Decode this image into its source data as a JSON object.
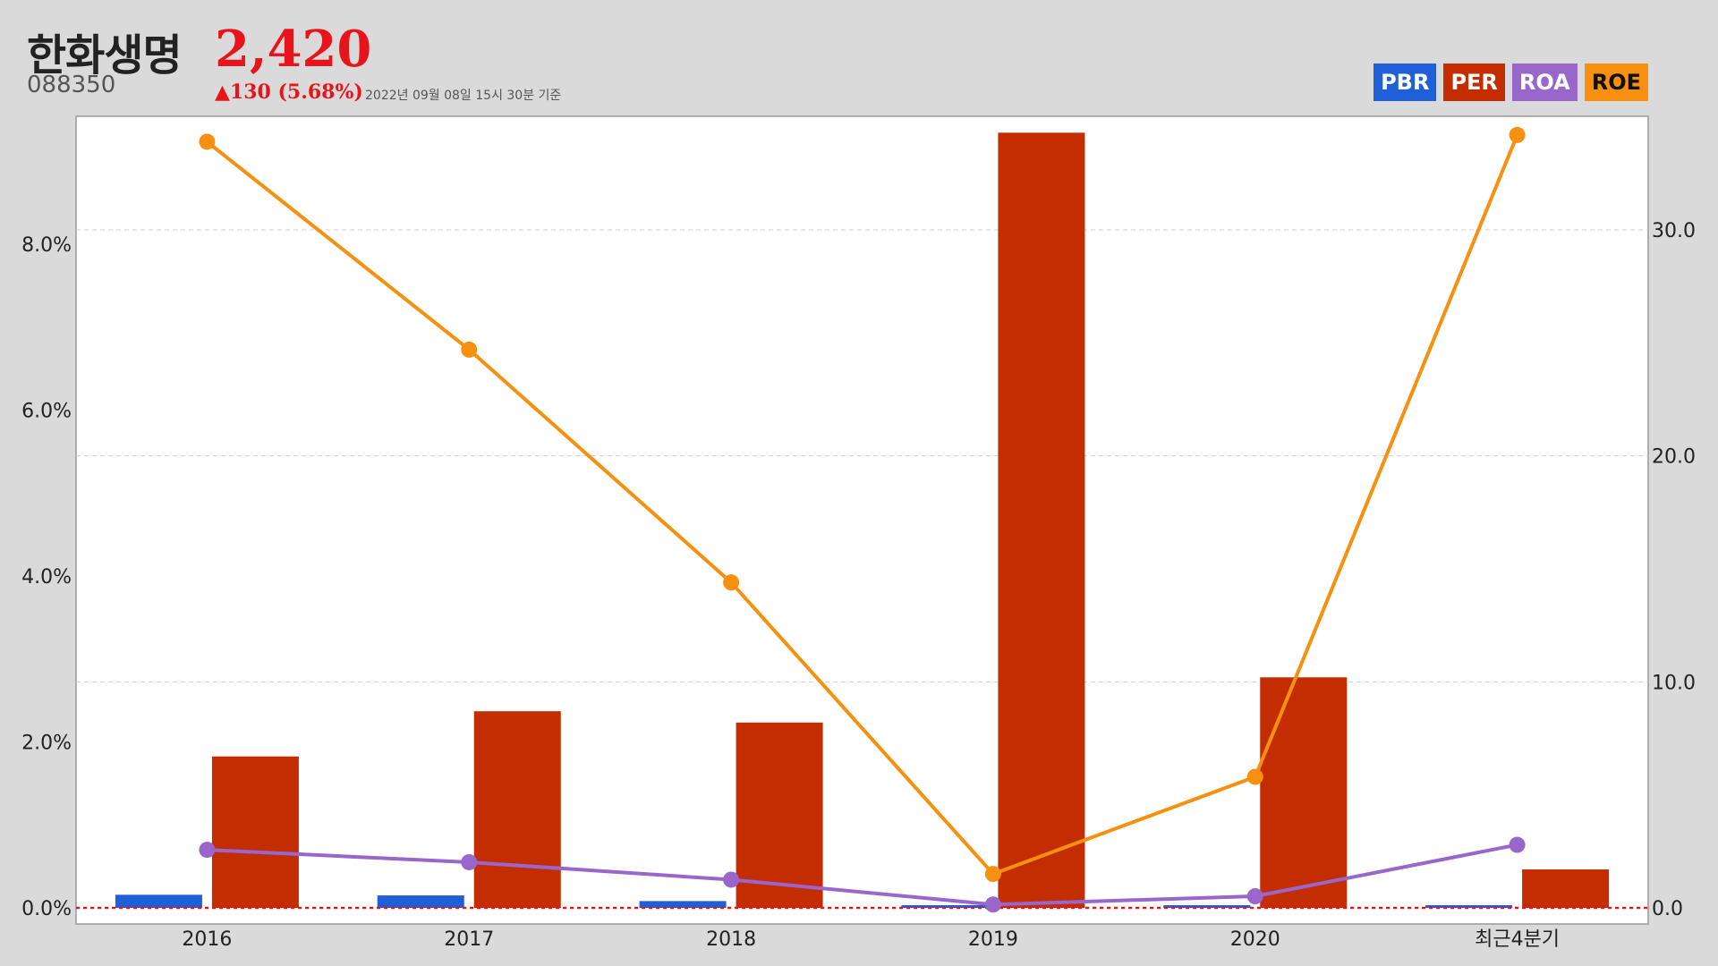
{
  "header": {
    "company": "한화생명",
    "price": "2,420",
    "ticker": "088350",
    "change": "▲130 (5.68%)",
    "as_of": "2022년 09월 08일 15시 30분 기준"
  },
  "legend": [
    {
      "label": "PBR",
      "color": "#1f5fd8"
    },
    {
      "label": "PER",
      "color": "#c42d00"
    },
    {
      "label": "ROA",
      "color": "#9966cc"
    },
    {
      "label": "ROE",
      "color": "#f7900f"
    }
  ],
  "chart_data": {
    "type": "bar",
    "categories": [
      "2016",
      "2017",
      "2018",
      "2019",
      "2020",
      "최근4분기"
    ],
    "left_axis": {
      "ticks": [
        "0.0%",
        "2.0%",
        "4.0%",
        "6.0%",
        "8.0%"
      ],
      "range": [
        0,
        9.3
      ],
      "unit": "%"
    },
    "right_axis": {
      "ticks": [
        "0.0",
        "10.0",
        "20.0",
        "30.0"
      ],
      "range": [
        0,
        34.7
      ]
    },
    "grid": true,
    "series": [
      {
        "name": "PBR",
        "type": "bar",
        "axis": "right",
        "color": "#1f5fd8",
        "values": [
          0.58,
          0.55,
          0.3,
          0.12,
          0.12,
          0.12
        ]
      },
      {
        "name": "PER",
        "type": "bar",
        "axis": "right",
        "color": "#c42d00",
        "values": [
          6.7,
          8.7,
          8.2,
          34.3,
          10.2,
          1.7
        ]
      },
      {
        "name": "ROA",
        "type": "line",
        "axis": "left",
        "color": "#9966cc",
        "values": [
          0.7,
          0.55,
          0.34,
          0.04,
          0.14,
          0.76
        ]
      },
      {
        "name": "ROE",
        "type": "line",
        "axis": "right",
        "color": "#f7900f",
        "values": [
          33.9,
          24.7,
          14.4,
          1.5,
          5.8,
          34.2
        ]
      }
    ]
  }
}
